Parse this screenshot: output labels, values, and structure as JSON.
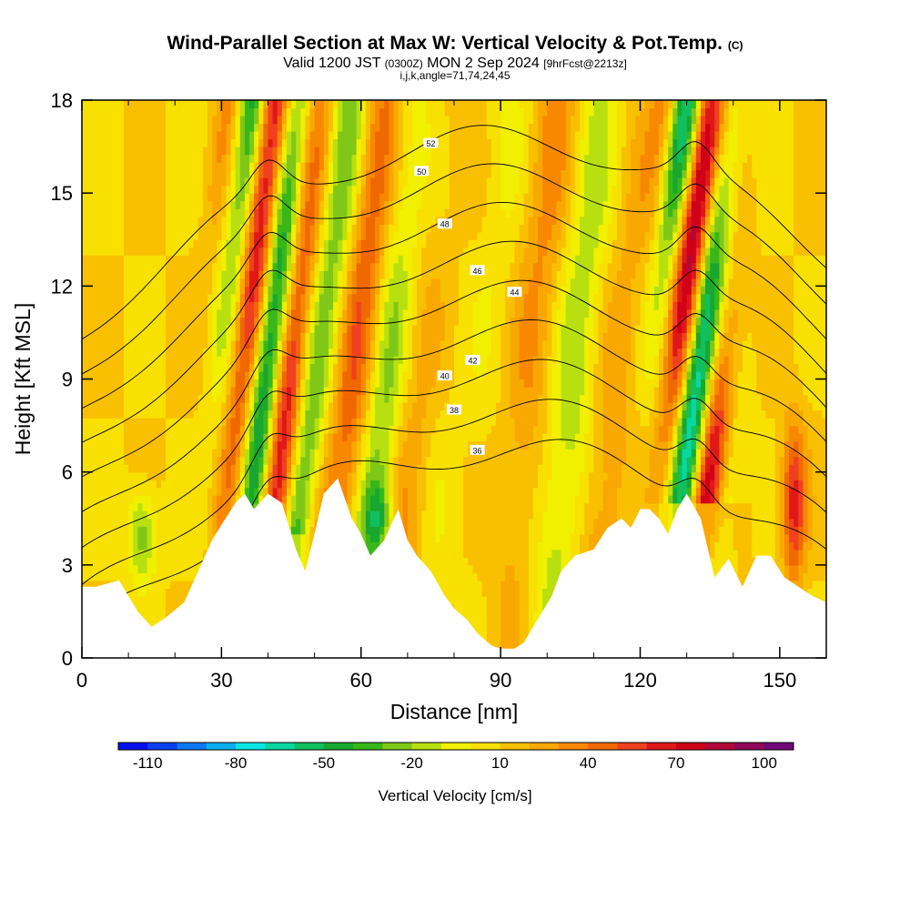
{
  "header": {
    "title": "Wind-Parallel Section at Max W: Vertical Velocity & Pot.Temp.",
    "copyright": "(C)",
    "valid_prefix": "Valid 1200 JST",
    "valid_utc": "(0300Z)",
    "valid_date": "MON 2 Sep 2024",
    "forecast": "[9hrFcst@2213z]",
    "indices": "i,j,k,angle=71,74,24,45"
  },
  "chart_data": {
    "type": "heatmap",
    "xlabel": "Distance [nm]",
    "ylabel": "Height [Kft MSL]",
    "xlim": [
      0,
      160
    ],
    "ylim": [
      0,
      18
    ],
    "x_ticks": [
      "0",
      "30",
      "60",
      "90",
      "120",
      "150"
    ],
    "y_ticks": [
      "0",
      "3",
      "6",
      "9",
      "12",
      "15",
      "18"
    ],
    "colorbar": {
      "label": "Vertical Velocity [cm/s]",
      "ticks": [
        "-110",
        "-80",
        "-50",
        "-20",
        "10",
        "40",
        "70",
        "100"
      ],
      "range": [
        -120,
        110
      ],
      "colors": [
        "#0a0ef0",
        "#0840f0",
        "#0a78f0",
        "#08b0f0",
        "#08e6e6",
        "#08d8a0",
        "#10c060",
        "#18a830",
        "#38b818",
        "#80c818",
        "#b8e010",
        "#f0f000",
        "#f8e000",
        "#f8c000",
        "#f8a800",
        "#f88800",
        "#f06800",
        "#f04020",
        "#e01818",
        "#d00018",
        "#b00838",
        "#900858",
        "#700878"
      ]
    },
    "terrain_profile": {
      "x": [
        0,
        3,
        8,
        12,
        15,
        18,
        22,
        25,
        28,
        30,
        33,
        35,
        37,
        40,
        43,
        46,
        48,
        50,
        52,
        55,
        58,
        60,
        62,
        65,
        68,
        70,
        72,
        75,
        78,
        80,
        83,
        85,
        88,
        90,
        93,
        95,
        97,
        99,
        101,
        103,
        106,
        110,
        113,
        116,
        118,
        120,
        122,
        124,
        126,
        128,
        130,
        133,
        136,
        139,
        142,
        145,
        148,
        151,
        154,
        157,
        160
      ],
      "y": [
        2.3,
        2.3,
        2.5,
        1.5,
        1.0,
        1.3,
        1.8,
        2.8,
        3.8,
        4.3,
        5.0,
        5.3,
        4.8,
        5.3,
        5.0,
        3.5,
        2.8,
        4.0,
        5.3,
        5.8,
        4.5,
        4.0,
        3.3,
        3.8,
        4.8,
        3.8,
        3.3,
        2.8,
        2.0,
        1.6,
        1.2,
        0.8,
        0.4,
        0.3,
        0.3,
        0.5,
        1.0,
        1.5,
        2.0,
        2.8,
        3.3,
        3.5,
        4.2,
        4.5,
        4.2,
        4.8,
        4.8,
        4.5,
        4.0,
        4.8,
        5.3,
        4.5,
        2.6,
        3.2,
        2.3,
        3.3,
        3.3,
        2.6,
        2.3,
        2.0,
        1.8
      ]
    },
    "theta_contours": [
      {
        "value": 36,
        "label": "36",
        "label_x": 85,
        "label_y": 6.7
      },
      {
        "value": 38,
        "label": "38",
        "label_x": 80,
        "label_y": 8.0
      },
      {
        "value": 40,
        "label": "40",
        "label_x": 78,
        "label_y": 9.1
      },
      {
        "value": 42,
        "label": "42",
        "label_x": 84,
        "label_y": 9.6
      },
      {
        "value": 44,
        "label": "44",
        "label_x": 93,
        "label_y": 11.8
      },
      {
        "value": 46,
        "label": "46",
        "label_x": 85,
        "label_y": 12.5
      },
      {
        "value": 48,
        "label": "48",
        "label_x": 78,
        "label_y": 14.0
      },
      {
        "value": 50,
        "label": "50",
        "label_x": 73,
        "label_y": 15.7
      },
      {
        "value": 52,
        "label": "52",
        "label_x": 75,
        "label_y": 16.6
      }
    ]
  }
}
